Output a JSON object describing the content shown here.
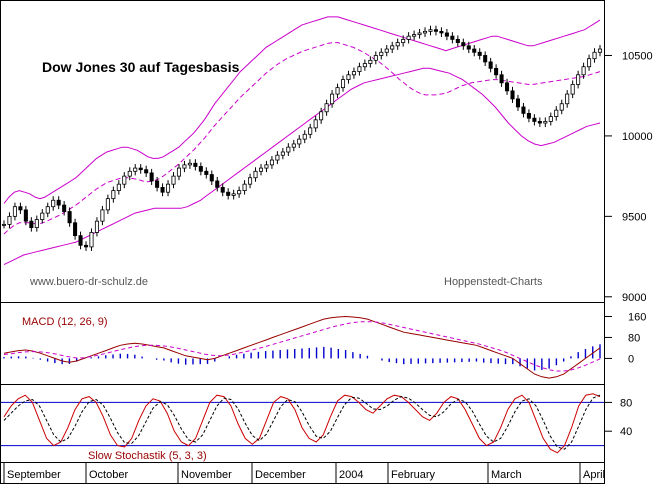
{
  "chart_data": {
    "type": "line",
    "title": "Dow Jones 30 auf Tagesbasis",
    "source_left": "www.buero-dr-schulz.de",
    "source_right": "Hoppenstedt-Charts",
    "months": [
      "September",
      "October",
      "November",
      "December",
      "2004",
      "February",
      "March",
      "April"
    ],
    "price_panel": {
      "yticks": [
        9000,
        9500,
        10000,
        10500
      ],
      "ylim": [
        8980,
        10820
      ],
      "close": [
        9450,
        9500,
        9560,
        9540,
        9470,
        9430,
        9480,
        9520,
        9560,
        9600,
        9570,
        9530,
        9460,
        9380,
        9320,
        9310,
        9400,
        9470,
        9540,
        9610,
        9660,
        9700,
        9750,
        9780,
        9800,
        9790,
        9770,
        9720,
        9680,
        9650,
        9700,
        9750,
        9800,
        9820,
        9830,
        9810,
        9780,
        9760,
        9720,
        9680,
        9650,
        9630,
        9640,
        9660,
        9700,
        9740,
        9780,
        9800,
        9820,
        9850,
        9880,
        9900,
        9930,
        9950,
        9980,
        10010,
        10050,
        10100,
        10150,
        10200,
        10260,
        10300,
        10350,
        10380,
        10400,
        10430,
        10450,
        10470,
        10500,
        10520,
        10540,
        10560,
        10580,
        10600,
        10620,
        10630,
        10640,
        10650,
        10660,
        10650,
        10640,
        10620,
        10600,
        10580,
        10560,
        10540,
        10520,
        10500,
        10460,
        10420,
        10380,
        10330,
        10280,
        10230,
        10180,
        10140,
        10110,
        10090,
        10080,
        10090,
        10120,
        10160,
        10200,
        10260,
        10320,
        10380,
        10430,
        10480,
        10520,
        10540
      ],
      "upper_band": [
        9580,
        9620,
        9650,
        9660,
        9650,
        9640,
        9620,
        9610,
        9620,
        9640,
        9660,
        9680,
        9700,
        9720,
        9740,
        9770,
        9800,
        9830,
        9860,
        9880,
        9900,
        9910,
        9920,
        9930,
        9930,
        9920,
        9910,
        9890,
        9870,
        9860,
        9860,
        9870,
        9890,
        9910,
        9930,
        9960,
        9990,
        10020,
        10060,
        10100,
        10150,
        10200,
        10240,
        10280,
        10320,
        10360,
        10400,
        10430,
        10460,
        10490,
        10520,
        10550,
        10570,
        10590,
        10610,
        10630,
        10650,
        10670,
        10690,
        10700,
        10710,
        10720,
        10730,
        10740,
        10740,
        10740,
        10730,
        10720,
        10710,
        10700,
        10690,
        10680,
        10670,
        10660,
        10650,
        10640,
        10630,
        10620,
        10610,
        10600,
        10590,
        10580,
        10570,
        10560,
        10550,
        10540,
        10530,
        10540,
        10550,
        10560,
        10570,
        10580,
        10590,
        10600,
        10610,
        10620,
        10620,
        10610,
        10600,
        10590,
        10580,
        10570,
        10560,
        10560,
        10570,
        10580,
        10590,
        10600,
        10610,
        10620,
        10630,
        10640,
        10650,
        10660,
        10680,
        10700,
        10720
      ],
      "lower_band": [
        9200,
        9220,
        9240,
        9260,
        9270,
        9280,
        9290,
        9300,
        9310,
        9320,
        9330,
        9340,
        9360,
        9380,
        9400,
        9420,
        9440,
        9460,
        9480,
        9500,
        9520,
        9530,
        9540,
        9550,
        9550,
        9550,
        9550,
        9550,
        9560,
        9580,
        9600,
        9630,
        9660,
        9690,
        9720,
        9750,
        9780,
        9810,
        9840,
        9870,
        9900,
        9930,
        9960,
        9990,
        10020,
        10050,
        10080,
        10110,
        10140,
        10170,
        10200,
        10230,
        10260,
        10290,
        10310,
        10330,
        10340,
        10350,
        10360,
        10370,
        10380,
        10390,
        10400,
        10410,
        10420,
        10420,
        10410,
        10400,
        10390,
        10370,
        10350,
        10320,
        10290,
        10260,
        10220,
        10180,
        10130,
        10080,
        10040,
        10000,
        9970,
        9950,
        9940,
        9950,
        9960,
        9980,
        10000,
        10020,
        10040,
        10060,
        10070,
        10080
      ]
    },
    "macd_panel": {
      "label": "MACD (12, 26, 9)",
      "yticks": [
        0,
        80,
        160
      ],
      "ylim": [
        -90,
        200
      ],
      "macd": [
        20,
        25,
        30,
        32,
        28,
        20,
        10,
        0,
        -10,
        -15,
        -10,
        0,
        10,
        20,
        30,
        40,
        50,
        55,
        58,
        55,
        50,
        45,
        40,
        30,
        20,
        10,
        5,
        0,
        -5,
        0,
        10,
        20,
        30,
        40,
        50,
        60,
        70,
        80,
        90,
        100,
        110,
        120,
        130,
        140,
        150,
        155,
        158,
        160,
        158,
        155,
        150,
        140,
        130,
        120,
        110,
        100,
        95,
        90,
        85,
        80,
        75,
        70,
        65,
        60,
        55,
        50,
        40,
        30,
        20,
        10,
        0,
        -20,
        -40,
        -60,
        -70,
        -75,
        -70,
        -60,
        -40,
        -20,
        0,
        20,
        40
      ],
      "signal": [
        15,
        18,
        22,
        25,
        26,
        25,
        22,
        18,
        12,
        6,
        2,
        2,
        6,
        12,
        18,
        25,
        32,
        38,
        44,
        48,
        50,
        50,
        48,
        45,
        40,
        34,
        28,
        22,
        16,
        12,
        10,
        12,
        16,
        22,
        28,
        35,
        42,
        50,
        58,
        66,
        74,
        82,
        90,
        98,
        106,
        114,
        122,
        128,
        134,
        138,
        140,
        140,
        138,
        134,
        128,
        122,
        116,
        110,
        104,
        98,
        92,
        86,
        80,
        74,
        68,
        62,
        56,
        48,
        40,
        32,
        22,
        10,
        -2,
        -14,
        -26,
        -36,
        -44,
        -48,
        -48,
        -44,
        -36,
        -26,
        -14,
        -2
      ]
    },
    "stoch_panel": {
      "label": "Slow Stochastik (5, 3, 3)",
      "yticks": [
        40,
        80
      ],
      "ylim": [
        0,
        100
      ],
      "lines": [
        80,
        20
      ],
      "k": [
        60,
        75,
        85,
        90,
        80,
        55,
        30,
        20,
        25,
        45,
        70,
        85,
        88,
        80,
        60,
        35,
        20,
        18,
        30,
        55,
        75,
        85,
        82,
        65,
        40,
        25,
        20,
        30,
        55,
        80,
        90,
        88,
        75,
        50,
        30,
        22,
        30,
        55,
        80,
        88,
        85,
        70,
        45,
        30,
        25,
        35,
        60,
        82,
        90,
        88,
        80,
        70,
        65,
        75,
        85,
        90,
        88,
        80,
        70,
        60,
        55,
        65,
        80,
        88,
        85,
        70,
        50,
        30,
        20,
        25,
        45,
        70,
        85,
        90,
        80,
        55,
        30,
        15,
        10,
        20,
        45,
        75,
        90,
        92,
        88
      ],
      "d": [
        55,
        65,
        75,
        82,
        84,
        75,
        55,
        35,
        25,
        30,
        47,
        67,
        81,
        84,
        76,
        58,
        38,
        24,
        23,
        34,
        53,
        72,
        81,
        77,
        62,
        43,
        28,
        25,
        35,
        55,
        75,
        86,
        84,
        71,
        51,
        34,
        27,
        36,
        55,
        74,
        84,
        81,
        67,
        48,
        33,
        30,
        40,
        59,
        77,
        87,
        86,
        79,
        71,
        70,
        75,
        83,
        88,
        86,
        79,
        70,
        62,
        60,
        67,
        78,
        84,
        81,
        68,
        50,
        33,
        25,
        30,
        47,
        67,
        82,
        85,
        75,
        55,
        33,
        18,
        15,
        25,
        47,
        70,
        86,
        90
      ]
    }
  }
}
